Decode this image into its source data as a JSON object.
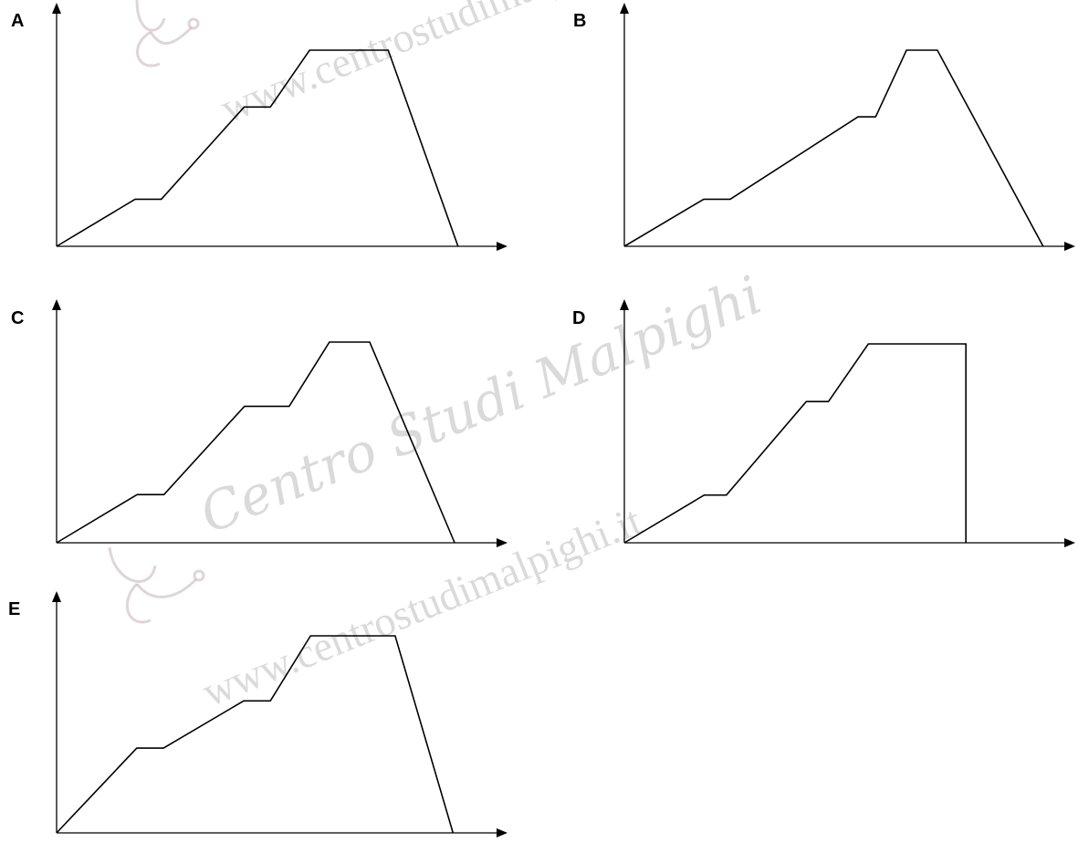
{
  "watermark": {
    "url_text": "www.centrostudimalpighi.it",
    "script_text": "Centro Studi Malpighi",
    "logo_icon": "stethoscope-logo-icon"
  },
  "chart_data": [
    {
      "type": "line",
      "panel": "A",
      "title": "",
      "xlabel": "",
      "ylabel": "",
      "x_ticks": [],
      "y_ticks": [],
      "xlim": [
        0,
        100
      ],
      "ylim": [
        0,
        100
      ],
      "grid": false,
      "series": [
        {
          "x": [
            0,
            18,
            24,
            43,
            49,
            58,
            76,
            92
          ],
          "y": [
            0,
            24,
            24,
            71,
            71,
            100,
            100,
            0
          ]
        }
      ]
    },
    {
      "type": "line",
      "panel": "B",
      "title": "",
      "xlabel": "",
      "ylabel": "",
      "x_ticks": [],
      "y_ticks": [],
      "xlim": [
        0,
        100
      ],
      "ylim": [
        0,
        100
      ],
      "grid": false,
      "series": [
        {
          "x": [
            0,
            18,
            24,
            53,
            57,
            64,
            71,
            95
          ],
          "y": [
            0,
            24,
            24,
            66,
            66,
            100,
            100,
            0
          ]
        }
      ]
    },
    {
      "type": "line",
      "panel": "C",
      "title": "",
      "xlabel": "",
      "ylabel": "",
      "x_ticks": [],
      "y_ticks": [],
      "xlim": [
        0,
        100
      ],
      "ylim": [
        0,
        100
      ],
      "grid": false,
      "series": [
        {
          "x": [
            0,
            18,
            24,
            42,
            52,
            61,
            70,
            89
          ],
          "y": [
            0,
            24,
            24,
            68,
            68,
            100,
            100,
            0
          ]
        }
      ]
    },
    {
      "type": "line",
      "panel": "D",
      "title": "",
      "xlabel": "",
      "ylabel": "",
      "x_ticks": [],
      "y_ticks": [],
      "xlim": [
        0,
        100
      ],
      "ylim": [
        0,
        100
      ],
      "grid": false,
      "series": [
        {
          "x": [
            0,
            18,
            23,
            41,
            46,
            55,
            77,
            77
          ],
          "y": [
            0,
            24,
            24,
            71,
            71,
            100,
            100,
            0
          ]
        }
      ]
    },
    {
      "type": "line",
      "panel": "E",
      "title": "",
      "xlabel": "",
      "ylabel": "",
      "x_ticks": [],
      "y_ticks": [],
      "xlim": [
        0,
        100
      ],
      "ylim": [
        0,
        100
      ],
      "grid": false,
      "series": [
        {
          "x": [
            0,
            18,
            24,
            42,
            48,
            57,
            76,
            89
          ],
          "y": [
            0,
            43,
            43,
            67,
            67,
            100,
            100,
            0
          ]
        }
      ]
    }
  ]
}
